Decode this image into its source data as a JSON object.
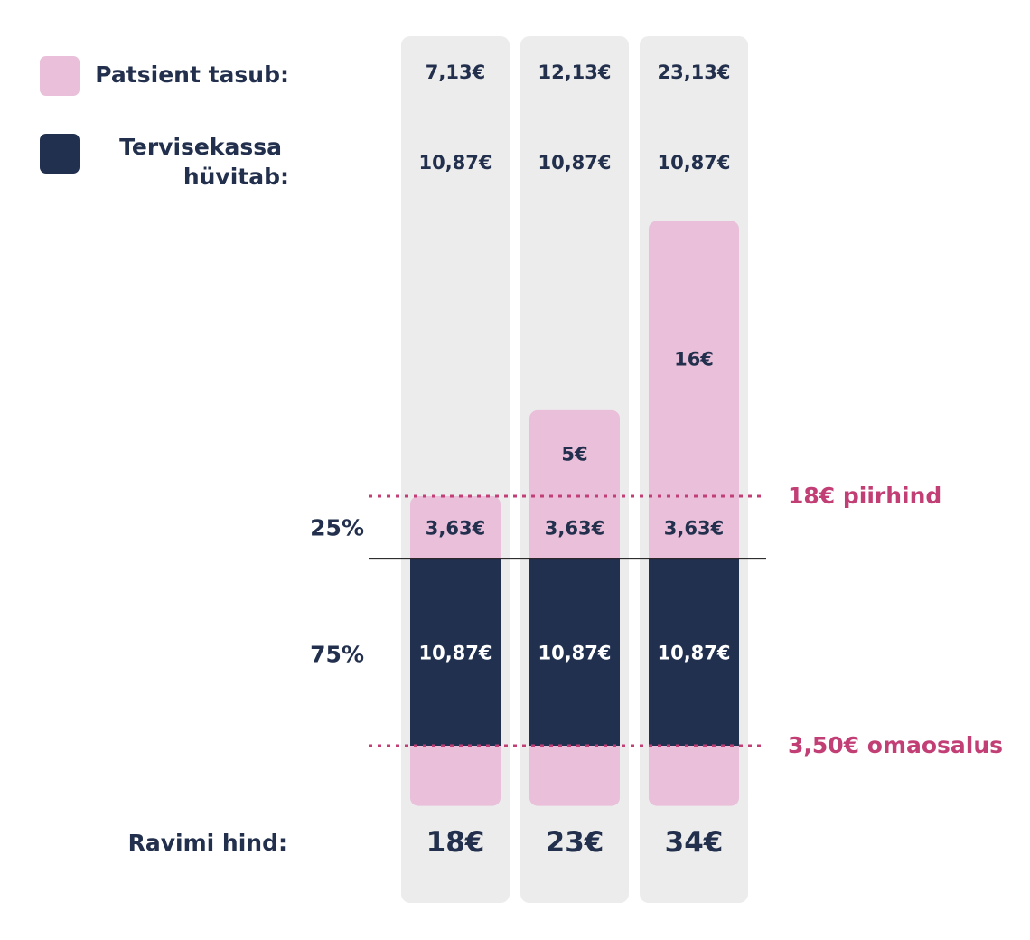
{
  "colors": {
    "patient": "#e9bfd9",
    "insurer": "#223050",
    "column_bg": "#ececec",
    "text_dark": "#22304d",
    "accent": "#c23f76"
  },
  "legend": {
    "patient_label": "Patsient tasub:",
    "insurer_label_line1": "Tervisekassa",
    "insurer_label_line2": "hüvitab:"
  },
  "chart_data": {
    "type": "bar",
    "stacked": true,
    "categories": [
      "18€",
      "23€",
      "34€"
    ],
    "x_label": "Ravimi hind:",
    "series": [
      {
        "name": "Patsient tasub:",
        "segment": "omaosalus",
        "values": [
          3.5,
          3.5,
          3.5
        ]
      },
      {
        "name": "Tervisekassa hüvitab:",
        "segment": "75%",
        "values": [
          10.87,
          10.87,
          10.87
        ],
        "labels": [
          "10,87€",
          "10,87€",
          "10,87€"
        ]
      },
      {
        "name": "Patsient tasub:",
        "segment": "25%",
        "values": [
          3.63,
          3.63,
          3.63
        ],
        "labels": [
          "3,63€",
          "3,63€",
          "3,63€"
        ]
      },
      {
        "name": "Patsient tasub:",
        "segment": "above threshold",
        "values": [
          0,
          5,
          16
        ],
        "labels": [
          "",
          "5€",
          "16€"
        ]
      }
    ],
    "patient_totals": [
      "7,13€",
      "12,13€",
      "23,13€"
    ],
    "insurer_totals": [
      "10,87€",
      "10,87€",
      "10,87€"
    ],
    "percent_labels": [
      "25%",
      "75%"
    ],
    "reference_lines": [
      {
        "value": 18,
        "label": "18€ piirhind",
        "style": "dotted"
      },
      {
        "value": 3.5,
        "label": "3,50€ omaosalus",
        "style": "dotted"
      }
    ],
    "ylim": [
      0,
      34
    ]
  }
}
